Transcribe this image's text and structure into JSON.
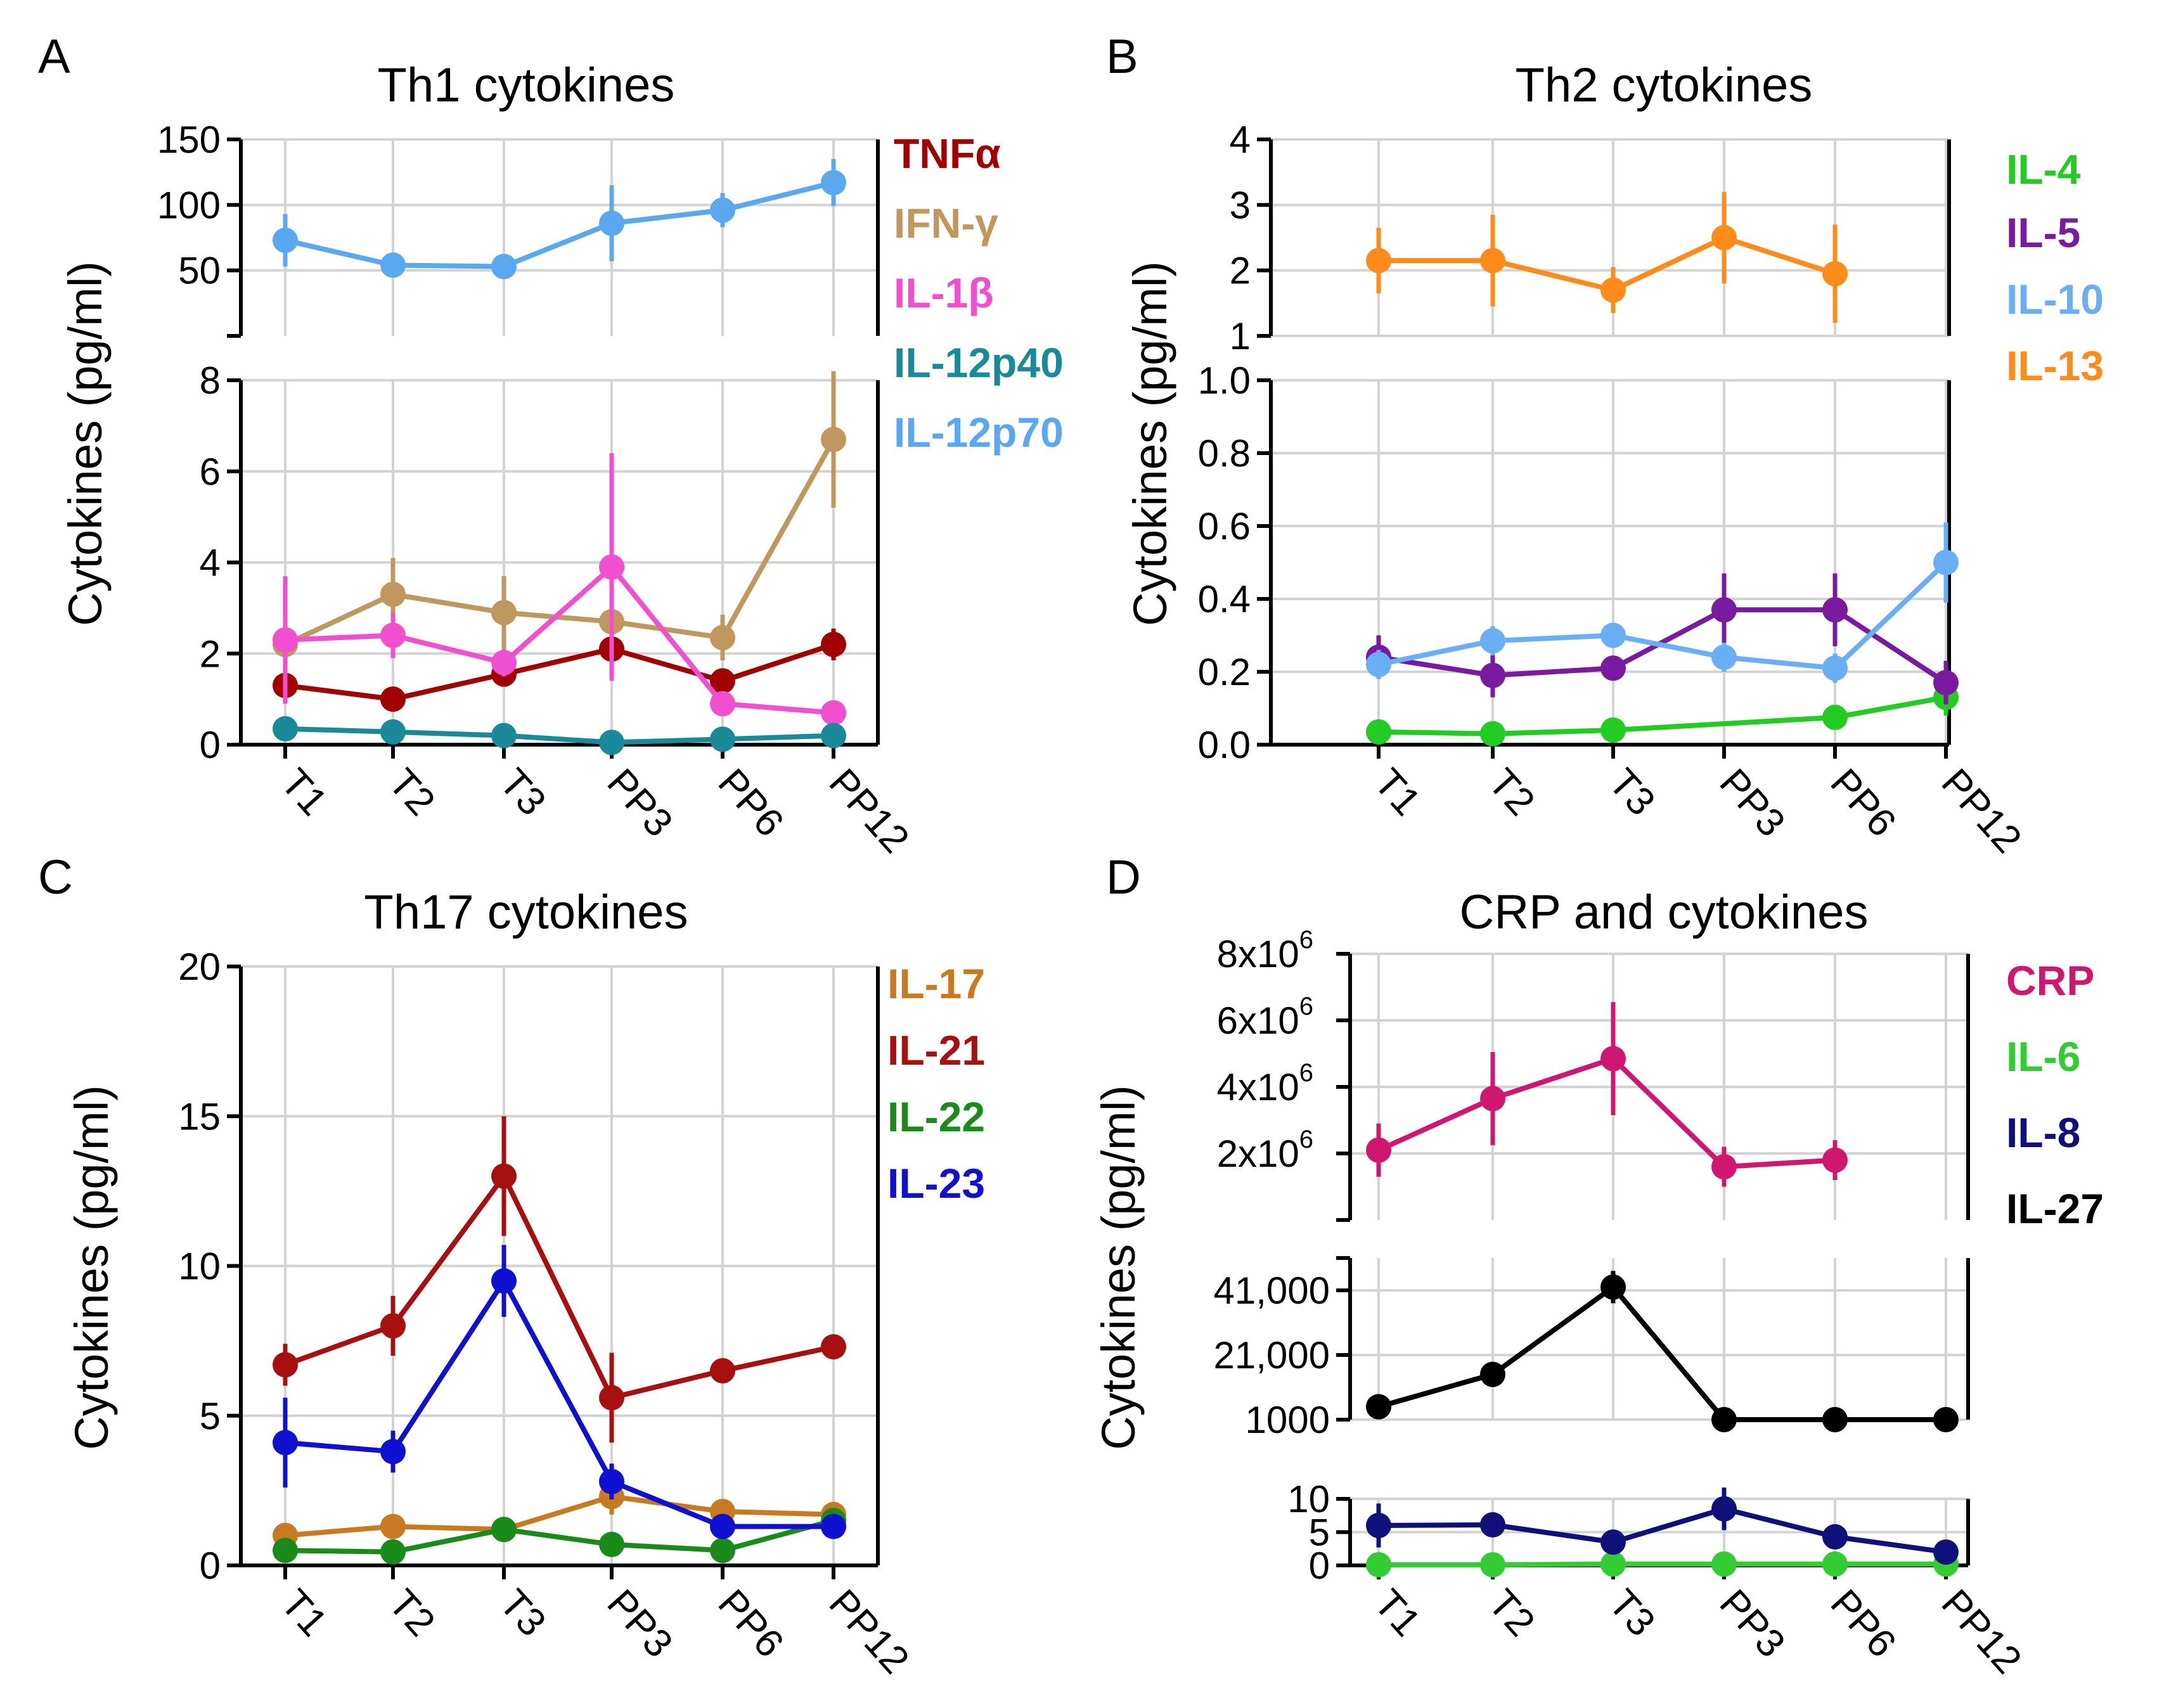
{
  "figure": {
    "panels": [
      {
        "label": "A",
        "chart_data": {
          "type": "line",
          "title": "Th1 cytokines",
          "ylabel": "Cytokines (pg/ml)",
          "xlabel": "",
          "categories": [
            "T1",
            "T2",
            "T3",
            "PP3",
            "PP6",
            "PP12"
          ],
          "grid": true,
          "legend_position": "right",
          "broken_axis": true,
          "segments": [
            {
              "ylim": [
                0,
                8
              ],
              "ticks": [
                {
                  "v": 0,
                  "t": "0"
                },
                {
                  "v": 2,
                  "t": "2"
                },
                {
                  "v": 4,
                  "t": "4"
                },
                {
                  "v": 6,
                  "t": "6"
                },
                {
                  "v": 8,
                  "t": "8"
                }
              ]
            },
            {
              "ylim": [
                0,
                150
              ],
              "ticks": [
                {
                  "v": 50,
                  "t": "50"
                },
                {
                  "v": 100,
                  "t": "100"
                },
                {
                  "v": 150,
                  "t": "150"
                }
              ]
            }
          ],
          "series": [
            {
              "name": "TNFα",
              "color": "#a00000",
              "segment": 0,
              "values": [
                1.3,
                1.0,
                1.55,
                2.1,
                1.4,
                2.2
              ],
              "errors": [
                0.3,
                0.2,
                0.2,
                0.6,
                0.25,
                0.35
              ]
            },
            {
              "name": "IFN-γ",
              "color": "#c0975d",
              "segment": 0,
              "values": [
                2.2,
                3.3,
                2.9,
                2.7,
                2.35,
                6.7
              ],
              "errors": [
                0.6,
                0.8,
                0.8,
                0.6,
                0.5,
                1.5
              ]
            },
            {
              "name": "IL-1β",
              "color": "#f050d0",
              "segment": 0,
              "values": [
                2.3,
                2.4,
                1.8,
                3.9,
                0.9,
                0.7
              ],
              "errors": [
                1.4,
                0.5,
                0.3,
                2.5,
                0.2,
                0.15
              ]
            },
            {
              "name": "IL-12p40",
              "color": "#1a8a9a",
              "segment": 0,
              "values": [
                0.35,
                0.28,
                0.2,
                0.05,
                0.12,
                0.2
              ],
              "errors": [
                0.1,
                0.08,
                0.06,
                0.03,
                0.05,
                0.06
              ]
            },
            {
              "name": "IL-12p70",
              "color": "#5aa8f0",
              "segment": 1,
              "values": [
                73,
                54,
                53,
                86,
                96,
                117
              ],
              "errors": [
                20,
                5,
                5,
                29,
                13,
                18
              ]
            }
          ]
        }
      },
      {
        "label": "B",
        "chart_data": {
          "type": "line",
          "title": "Th2 cytokines",
          "ylabel": "Cytokines (pg/ml)",
          "xlabel": "",
          "categories": [
            "T1",
            "T2",
            "T3",
            "PP3",
            "PP6",
            "PP12"
          ],
          "grid": true,
          "legend_position": "right",
          "broken_axis": true,
          "segments": [
            {
              "ylim": [
                0,
                1.0
              ],
              "ticks": [
                {
                  "v": 0,
                  "t": "0.0"
                },
                {
                  "v": 0.2,
                  "t": "0.2"
                },
                {
                  "v": 0.4,
                  "t": "0.4"
                },
                {
                  "v": 0.6,
                  "t": "0.6"
                },
                {
                  "v": 0.8,
                  "t": "0.8"
                },
                {
                  "v": 1.0,
                  "t": "1.0"
                }
              ]
            },
            {
              "ylim": [
                1,
                4
              ],
              "ticks": [
                {
                  "v": 1,
                  "t": "1"
                },
                {
                  "v": 2,
                  "t": "2"
                },
                {
                  "v": 3,
                  "t": "3"
                },
                {
                  "v": 4,
                  "t": "4"
                }
              ]
            }
          ],
          "series": [
            {
              "name": "IL-4",
              "color": "#22cc22",
              "segment": 0,
              "values": [
                0.035,
                0.03,
                0.04,
                null,
                0.075,
                0.13
              ],
              "errors": [
                0.01,
                0.01,
                0.01,
                null,
                0.03,
                0.05
              ]
            },
            {
              "name": "IL-5",
              "color": "#7a1aa0",
              "segment": 0,
              "values": [
                0.24,
                0.19,
                0.21,
                0.37,
                0.37,
                0.17
              ],
              "errors": [
                0.06,
                0.06,
                0.03,
                0.1,
                0.1,
                0.06
              ]
            },
            {
              "name": "IL-10",
              "color": "#6aaef5",
              "segment": 0,
              "values": [
                0.22,
                0.285,
                0.3,
                0.24,
                0.21,
                0.5
              ],
              "errors": [
                0.04,
                0.04,
                0.03,
                0.04,
                0.04,
                0.11
              ]
            },
            {
              "name": "IL-13",
              "color": "#ff8c1a",
              "segment": 1,
              "values": [
                2.15,
                2.15,
                1.7,
                2.5,
                1.95,
                null
              ],
              "errors": [
                0.5,
                0.7,
                0.35,
                0.7,
                0.75,
                null
              ]
            }
          ]
        }
      },
      {
        "label": "C",
        "chart_data": {
          "type": "line",
          "title": "Th17 cytokines",
          "ylabel": "Cytokines (pg/ml)",
          "xlabel": "",
          "categories": [
            "T1",
            "T2",
            "T3",
            "PP3",
            "PP6",
            "PP12"
          ],
          "grid": true,
          "legend_position": "right",
          "broken_axis": false,
          "segments": [
            {
              "ylim": [
                0,
                20
              ],
              "ticks": [
                {
                  "v": 0,
                  "t": "0"
                },
                {
                  "v": 5,
                  "t": "5"
                },
                {
                  "v": 10,
                  "t": "10"
                },
                {
                  "v": 15,
                  "t": "15"
                },
                {
                  "v": 20,
                  "t": "20"
                }
              ]
            }
          ],
          "series": [
            {
              "name": "IL-17",
              "color": "#c87a20",
              "segment": 0,
              "values": [
                1.0,
                1.3,
                1.2,
                2.3,
                1.8,
                1.7
              ],
              "errors": [
                0.2,
                0.2,
                0.15,
                0.6,
                0.3,
                0.2
              ]
            },
            {
              "name": "IL-21",
              "color": "#a81010",
              "segment": 0,
              "values": [
                6.7,
                8.0,
                13.0,
                5.6,
                6.5,
                7.3
              ],
              "errors": [
                0.7,
                1.0,
                2.0,
                1.5,
                0.3,
                0.3
              ]
            },
            {
              "name": "IL-22",
              "color": "#1a8a1a",
              "segment": 0,
              "values": [
                0.5,
                0.45,
                1.2,
                0.7,
                0.5,
                1.5
              ],
              "errors": [
                0.1,
                0.1,
                0.2,
                0.15,
                0.1,
                0.2
              ]
            },
            {
              "name": "IL-23",
              "color": "#1010d0",
              "segment": 0,
              "values": [
                4.1,
                3.8,
                9.5,
                2.8,
                1.3,
                1.3
              ],
              "errors": [
                1.5,
                0.7,
                1.2,
                0.6,
                0.3,
                0.3
              ]
            }
          ]
        }
      },
      {
        "label": "D",
        "chart_data": {
          "type": "line",
          "title": "CRP and cytokines",
          "ylabel": "Cytokines (pg/ml)",
          "xlabel": "",
          "categories": [
            "T1",
            "T2",
            "T3",
            "PP3",
            "PP6",
            "PP12"
          ],
          "grid": true,
          "legend_position": "right",
          "broken_axis": true,
          "segments": [
            {
              "ylim": [
                0,
                10
              ],
              "ticks": [
                {
                  "v": 0,
                  "t": "0"
                },
                {
                  "v": 5,
                  "t": "5"
                },
                {
                  "v": 10,
                  "t": "10"
                }
              ]
            },
            {
              "ylim": [
                1000,
                51000
              ],
              "ticks": [
                {
                  "v": 1000,
                  "t": "1000"
                },
                {
                  "v": 21000,
                  "t": "21,000"
                },
                {
                  "v": 41000,
                  "t": "41,000"
                }
              ]
            },
            {
              "ylim": [
                0,
                8000000
              ],
              "ticks": [
                {
                  "v": 2000000,
                  "t": "2x10",
                  "sup": "6"
                },
                {
                  "v": 4000000,
                  "t": "4x10",
                  "sup": "6"
                },
                {
                  "v": 6000000,
                  "t": "6x10",
                  "sup": "6"
                },
                {
                  "v": 8000000,
                  "t": "8x10",
                  "sup": "6"
                }
              ]
            }
          ],
          "series": [
            {
              "name": "CRP",
              "color": "#d0176f",
              "segment": 2,
              "values": [
                2100000,
                3650000,
                4850000,
                1600000,
                1800000,
                null
              ],
              "errors": [
                800000,
                1400000,
                1700000,
                600000,
                600000,
                null
              ]
            },
            {
              "name": "IL-6",
              "color": "#33cc33",
              "segment": 0,
              "values": [
                0.1,
                0.1,
                0.2,
                0.2,
                0.2,
                0.2
              ],
              "errors": [
                0.05,
                0.05,
                0.05,
                0.05,
                0.05,
                0.05
              ]
            },
            {
              "name": "IL-8",
              "color": "#10107a",
              "segment": 0,
              "values": [
                6.0,
                6.1,
                3.5,
                8.5,
                4.3,
                2.0
              ],
              "errors": [
                3.3,
                1.0,
                0.5,
                3.2,
                0.8,
                0.4
              ]
            },
            {
              "name": "IL-27",
              "color": "#000000",
              "segment": 1,
              "values": [
                5000,
                15000,
                42000,
                1000,
                1000,
                1000
              ],
              "errors": [
                1000,
                1500,
                5000,
                300,
                300,
                300
              ]
            }
          ]
        }
      }
    ]
  }
}
